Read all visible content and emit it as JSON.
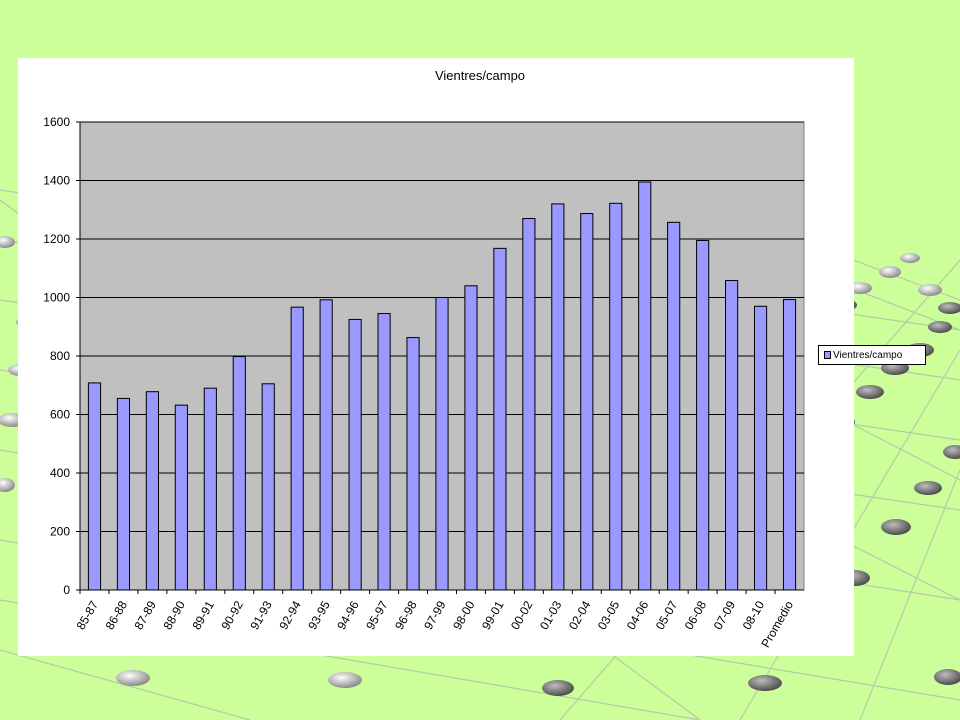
{
  "chart_data": {
    "type": "bar",
    "title": "Vientres/campo",
    "xlabel": "",
    "ylabel": "",
    "ylim": [
      0,
      1600
    ],
    "yticks": [
      "0",
      "200",
      "400",
      "600",
      "800",
      "1000",
      "1200",
      "1400",
      "1600"
    ],
    "grid": true,
    "legend_position": "right",
    "categories": [
      "85-87",
      "86-88",
      "87-89",
      "88-90",
      "89-91",
      "90-92",
      "91-93",
      "92-94",
      "93-95",
      "94-96",
      "95-97",
      "96-98",
      "97-99",
      "98-00",
      "99-01",
      "00-02",
      "01-03",
      "02-04",
      "03-05",
      "04-06",
      "05-07",
      "06-08",
      "07-09",
      "08-10",
      "Promedio"
    ],
    "series": [
      {
        "name": "Vientres/campo",
        "values": [
          708,
          655,
          678,
          632,
          690,
          798,
          705,
          967,
          992,
          925,
          945,
          863,
          1000,
          1040,
          1168,
          1270,
          1320,
          1287,
          1322,
          1395,
          1257,
          1195,
          1058,
          970,
          993
        ],
        "color": "#9999ff"
      }
    ],
    "plot_background": "#c0c0c0"
  }
}
